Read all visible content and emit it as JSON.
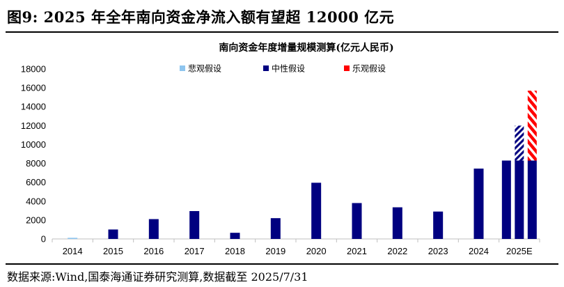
{
  "figure": {
    "title": "图9:  2025 年全年南向资金净流入额有望超 12000 亿元",
    "source": "数据来源:Wind,国泰海通证券研究测算,数据截至 2025/7/31"
  },
  "colors": {
    "pessimistic": "#8ec5ef",
    "neutral": "#000080",
    "optimistic": "#ff0000",
    "axis": "#bfbfbf"
  },
  "chart_data": {
    "type": "bar",
    "title": "南向资金年度增量规模测算(亿元人民币)",
    "xlabel": "",
    "ylabel": "",
    "ylim": [
      0,
      18000
    ],
    "yticks": [
      "0",
      "2000",
      "4000",
      "6000",
      "8000",
      "10000",
      "12000",
      "14000",
      "16000",
      "18000"
    ],
    "grid": false,
    "legend_position": "top",
    "categories": [
      "2014",
      "2015",
      "2016",
      "2017",
      "2018",
      "2019",
      "2020",
      "2021",
      "2022",
      "2023",
      "2024",
      "2025E"
    ],
    "series": [
      {
        "name": "悲观假设",
        "values": [
          120,
          null,
          null,
          null,
          null,
          null,
          null,
          null,
          null,
          null,
          null,
          8300
        ],
        "style": "solid"
      },
      {
        "name": "中性假设",
        "values": [
          null,
          1000,
          2100,
          2950,
          650,
          2200,
          5950,
          3800,
          3350,
          2900,
          7450,
          12000
        ],
        "style": "solid",
        "projection_style": "hatched"
      },
      {
        "name": "乐观假设",
        "values": [
          null,
          null,
          null,
          null,
          null,
          null,
          null,
          null,
          null,
          null,
          null,
          15700
        ],
        "style": "hatched"
      }
    ],
    "projection_base": 8300
  }
}
